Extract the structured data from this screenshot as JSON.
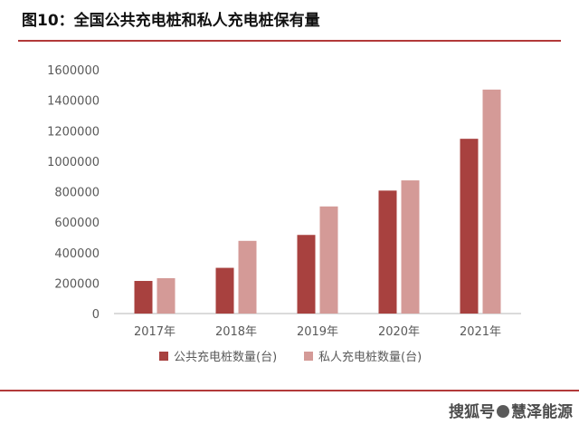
{
  "header": {
    "title": "图10：全国公共充电桩和私人充电桩保有量"
  },
  "colors": {
    "rule": "#b23a3a",
    "public": "#a8413f",
    "private": "#d49a97",
    "axis": "#cfcfcf",
    "text": "#595959"
  },
  "chart_data": {
    "type": "bar",
    "title": "",
    "xlabel": "",
    "ylabel": "",
    "categories": [
      "2017年",
      "2018年",
      "2019年",
      "2020年",
      "2021年"
    ],
    "series": [
      {
        "name": "公共充电桩数量(台)",
        "values": [
          214000,
          300000,
          516000,
          807000,
          1147000
        ]
      },
      {
        "name": "私人充电桩数量(台)",
        "values": [
          232000,
          477000,
          703000,
          874000,
          1470000
        ]
      }
    ],
    "ylim": [
      0,
      1600000
    ],
    "yticks": [
      "0",
      "200000",
      "400000",
      "600000",
      "800000",
      "1000000",
      "1200000",
      "1400000",
      "1600000"
    ],
    "grid": false,
    "legend": "bottom-center"
  },
  "watermark": {
    "text_left": "搜狐号",
    "text_right": "慧泽能源"
  }
}
